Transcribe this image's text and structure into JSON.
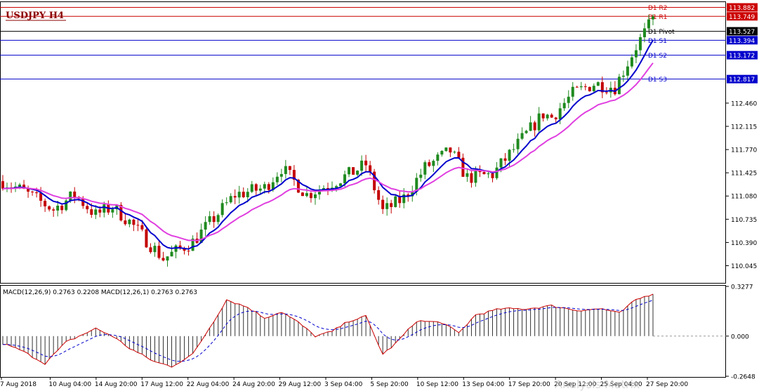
{
  "chart_data": {
    "type": "candlestick",
    "symbol_title": "USDJPY H4",
    "price_axis": {
      "ticks": [
        "112.460",
        "112.115",
        "111.770",
        "111.425",
        "111.080",
        "110.735",
        "110.390",
        "110.045"
      ],
      "range": [
        109.8,
        113.95
      ]
    },
    "time_axis_labels": [
      "7 Aug 2018",
      "10 Aug 04:00",
      "14 Aug 20:00",
      "17 Aug 12:00",
      "22 Aug 04:00",
      "24 Aug 20:00",
      "29 Aug 12:00",
      "3 Sep 04:00",
      "5 Sep 20:00",
      "10 Sep 12:00",
      "13 Sep 04:00",
      "17 Sep 20:00",
      "20 Sep 12:00",
      "25 Sep 04:00",
      "27 Sep 20:00"
    ],
    "pivot_levels": [
      {
        "name": "D1 R2",
        "price": 113.882,
        "price_label": "113.882",
        "color": "#cc0000"
      },
      {
        "name": "D1 R1",
        "price": 113.749,
        "price_label": "113.749",
        "color": "#cc0000"
      },
      {
        "name": "D1 Pivot",
        "price": 113.527,
        "price_label": "113.527",
        "color": "#000000"
      },
      {
        "name": "D1 S1",
        "price": 113.394,
        "price_label": "113.394",
        "color": "#0000cc"
      },
      {
        "name": "D1 S2",
        "price": 113.172,
        "price_label": "113.172",
        "color": "#0000cc"
      },
      {
        "name": "D1 S3",
        "price": 112.817,
        "price_label": "112.817",
        "color": "#0000cc"
      }
    ],
    "trend_anchors": [
      [
        0,
        111.3
      ],
      [
        4,
        111.18
      ],
      [
        12,
        110.88
      ],
      [
        17,
        111.1
      ],
      [
        22,
        110.8
      ],
      [
        26,
        110.92
      ],
      [
        30,
        110.7
      ],
      [
        38,
        110.15
      ],
      [
        45,
        110.4
      ],
      [
        55,
        111.1
      ],
      [
        62,
        111.2
      ],
      [
        66,
        111.5
      ],
      [
        72,
        111.1
      ],
      [
        82,
        111.4
      ],
      [
        86,
        111.55
      ],
      [
        90,
        110.85
      ],
      [
        95,
        111.05
      ],
      [
        100,
        111.5
      ],
      [
        106,
        111.75
      ],
      [
        110,
        111.35
      ],
      [
        116,
        111.4
      ],
      [
        122,
        111.85
      ],
      [
        128,
        112.3
      ],
      [
        130,
        112.25
      ],
      [
        135,
        112.6
      ],
      [
        140,
        112.75
      ],
      [
        145,
        112.7
      ],
      [
        150,
        113.3
      ],
      [
        154,
        113.7
      ]
    ],
    "macd": {
      "legend": "MACD(12,26,9) 0.2763 0.2208 MACD(12,26,1) 0.2763 0.2763",
      "axis_ticks": [
        "0.3277",
        "0.000",
        "-0.2648"
      ],
      "range": [
        -0.2648,
        0.3277
      ],
      "anchors": [
        [
          0,
          -0.05
        ],
        [
          4,
          -0.09
        ],
        [
          10,
          -0.18
        ],
        [
          15,
          -0.04
        ],
        [
          22,
          0.05
        ],
        [
          26,
          0.0
        ],
        [
          30,
          -0.08
        ],
        [
          36,
          -0.17
        ],
        [
          40,
          -0.2
        ],
        [
          45,
          -0.12
        ],
        [
          50,
          0.1
        ],
        [
          53,
          0.24
        ],
        [
          58,
          0.19
        ],
        [
          62,
          0.12
        ],
        [
          66,
          0.16
        ],
        [
          70,
          0.09
        ],
        [
          74,
          0.0
        ],
        [
          78,
          0.03
        ],
        [
          82,
          0.1
        ],
        [
          86,
          0.13
        ],
        [
          90,
          -0.12
        ],
        [
          93,
          -0.05
        ],
        [
          98,
          0.1
        ],
        [
          104,
          0.09
        ],
        [
          108,
          0.02
        ],
        [
          112,
          0.14
        ],
        [
          118,
          0.18
        ],
        [
          124,
          0.18
        ],
        [
          130,
          0.2
        ],
        [
          136,
          0.17
        ],
        [
          142,
          0.18
        ],
        [
          146,
          0.15
        ],
        [
          150,
          0.24
        ],
        [
          154,
          0.28
        ]
      ]
    },
    "colors": {
      "bull": "#1f8a1f",
      "bear": "#c40000",
      "ma_fast": "#0000cc",
      "ma_slow": "#e040e0",
      "macd_line": "#cc0000",
      "macd_signal": "#0000cc",
      "grid_text": "#000000"
    }
  },
  "watermark": "Analysis Matrix"
}
